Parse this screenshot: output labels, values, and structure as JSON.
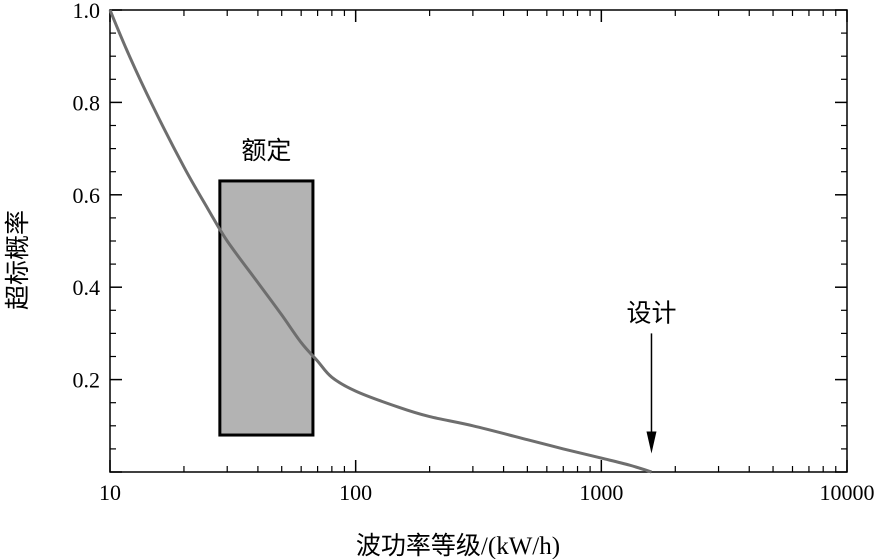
{
  "chart_data": {
    "type": "line",
    "xlabel": "波功率等级/(kW/h)",
    "ylabel": "超标概率",
    "xscale": "log",
    "xlim": [
      10,
      10000
    ],
    "ylim": [
      0,
      1.0
    ],
    "x_tick_labels": [
      "10",
      "100",
      "1000",
      "10000"
    ],
    "y_tick_labels": [
      "0.2",
      "0.4",
      "0.6",
      "0.8",
      "1.0"
    ],
    "grid": false,
    "series": [
      {
        "x": [
          10,
          12,
          15,
          20,
          25,
          30,
          40,
          50,
          60,
          70,
          80,
          100,
          150,
          200,
          300,
          500,
          700,
          1000,
          1300,
          1600
        ],
        "y": [
          1.0,
          0.9,
          0.79,
          0.66,
          0.57,
          0.5,
          0.41,
          0.34,
          0.28,
          0.24,
          0.205,
          0.175,
          0.14,
          0.12,
          0.1,
          0.07,
          0.05,
          0.03,
          0.015,
          0.0
        ],
        "color": "#6e6e6e"
      }
    ],
    "annotations": [
      {
        "text": "额定",
        "kind": "shaded-range",
        "x_range": [
          28,
          67
        ],
        "y_range": [
          0.08,
          0.63
        ],
        "fill": "#b3b3b3"
      },
      {
        "text": "设计",
        "kind": "arrow",
        "x": 1600,
        "y_from": 0.3,
        "y_to": 0.04
      }
    ]
  }
}
